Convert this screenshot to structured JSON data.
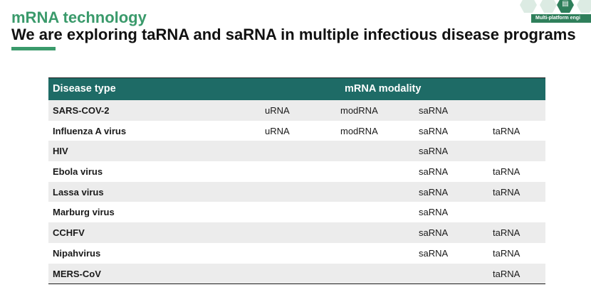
{
  "header": {
    "subtitle": "mRNA technology",
    "title": "We are exploring taRNA and saRNA in multiple infectious disease programs",
    "badge_label": "Multi-platform engi",
    "accent_color": "#3a9a6b",
    "icon": "platform-icon"
  },
  "table": {
    "header_color": "#1e6b66",
    "col_disease": "Disease type",
    "col_modality": "mRNA modality",
    "rows": [
      {
        "disease": "SARS-COV-2",
        "urna": "uRNA",
        "modrna": "modRNA",
        "sarna": "saRNA",
        "tarna": ""
      },
      {
        "disease": "Influenza A virus",
        "urna": "uRNA",
        "modrna": "modRNA",
        "sarna": "saRNA",
        "tarna": "taRNA"
      },
      {
        "disease": "HIV",
        "urna": "",
        "modrna": "",
        "sarna": "saRNA",
        "tarna": ""
      },
      {
        "disease": "Ebola virus",
        "urna": "",
        "modrna": "",
        "sarna": "saRNA",
        "tarna": "taRNA"
      },
      {
        "disease": "Lassa virus",
        "urna": "",
        "modrna": "",
        "sarna": "saRNA",
        "tarna": "taRNA"
      },
      {
        "disease": "Marburg virus",
        "urna": "",
        "modrna": "",
        "sarna": "saRNA",
        "tarna": ""
      },
      {
        "disease": "CCHFV",
        "urna": "",
        "modrna": "",
        "sarna": "saRNA",
        "tarna": "taRNA"
      },
      {
        "disease": "Nipahvirus",
        "urna": "",
        "modrna": "",
        "sarna": "saRNA",
        "tarna": "taRNA"
      },
      {
        "disease": "MERS-CoV",
        "urna": "",
        "modrna": "",
        "sarna": "",
        "tarna": "taRNA"
      }
    ]
  }
}
